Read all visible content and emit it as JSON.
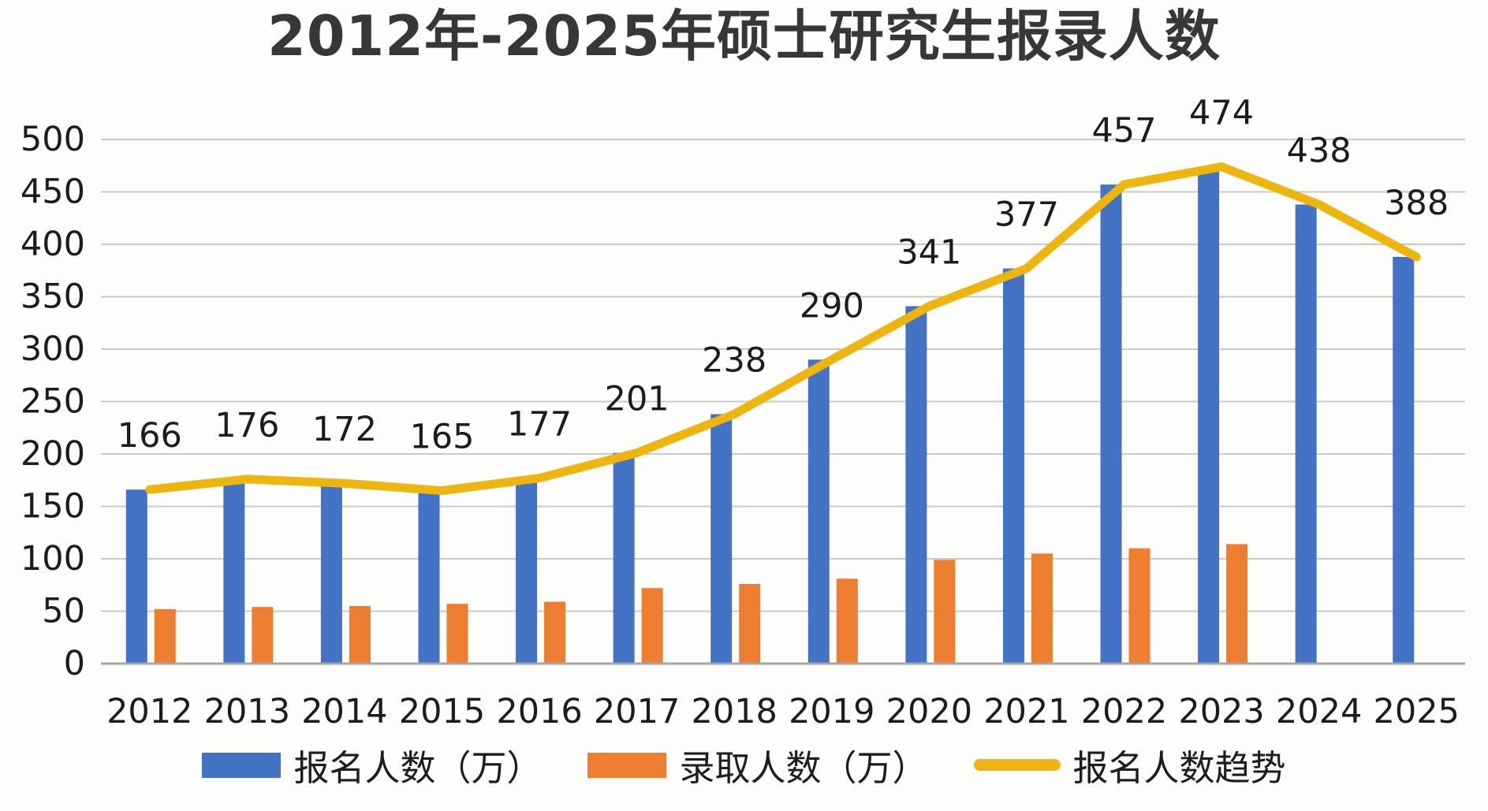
{
  "chart_data": {
    "type": "bar",
    "title": "2012年-2025年硕士研究生报录人数",
    "categories": [
      "2012",
      "2013",
      "2014",
      "2015",
      "2016",
      "2017",
      "2018",
      "2019",
      "2020",
      "2021",
      "2022",
      "2023",
      "2024",
      "2025"
    ],
    "series": [
      {
        "name": "报名人数（万）",
        "type": "bar",
        "color": "#4472c4",
        "values": [
          166,
          176,
          172,
          165,
          177,
          201,
          238,
          290,
          341,
          377,
          457,
          474,
          438,
          388
        ],
        "data_labels": true
      },
      {
        "name": "录取人数（万）",
        "type": "bar",
        "color": "#ed7d31",
        "values": [
          52,
          54,
          55,
          57,
          59,
          72,
          76,
          81,
          99,
          105,
          110,
          114,
          null,
          null
        ],
        "data_labels": false
      },
      {
        "name": "报名人数趋势",
        "type": "line",
        "color": "#ecb50f",
        "values": [
          166,
          176,
          172,
          165,
          177,
          201,
          238,
          290,
          341,
          377,
          457,
          474,
          438,
          388
        ],
        "data_labels": false
      }
    ],
    "xlabel": "",
    "ylabel": "",
    "ylim": [
      0,
      500
    ],
    "y_tick_step": 50,
    "y_tick_labels": [
      "0",
      "50",
      "100",
      "150",
      "200",
      "250",
      "300",
      "350",
      "400",
      "450",
      "500"
    ],
    "grid": true,
    "legend_position": "bottom",
    "colors": {
      "grid_line": "#c9c9c9",
      "axis_line": "#a6a6a6",
      "tick_text": "#1c1c1c",
      "data_label_text": "#1c1c1c",
      "title_text": "#373737",
      "background": "#fdfdfb"
    }
  }
}
